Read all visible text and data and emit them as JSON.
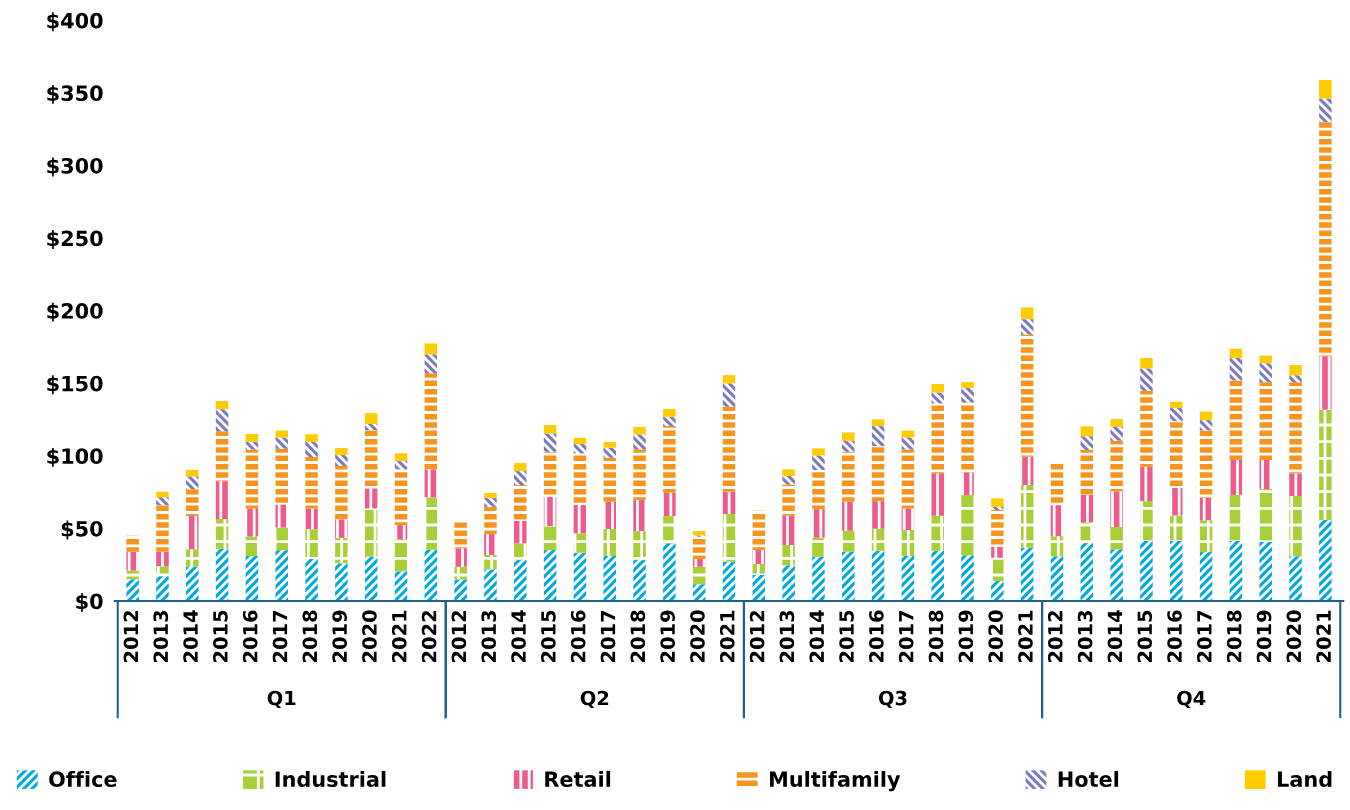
{
  "chart_data": {
    "type": "bar",
    "stacked": true,
    "categories": [
      "2012",
      "2013",
      "2014",
      "2015",
      "2016",
      "2017",
      "2018",
      "2019",
      "2020",
      "2021",
      "2022",
      "2012",
      "2013",
      "2014",
      "2015",
      "2016",
      "2017",
      "2018",
      "2019",
      "2020",
      "2021",
      "2012",
      "2013",
      "2014",
      "2015",
      "2016",
      "2017",
      "2018",
      "2019",
      "2020",
      "2021",
      "2012",
      "2013",
      "2014",
      "2015",
      "2016",
      "2017",
      "2018",
      "2019",
      "2020",
      "2021"
    ],
    "annotations": [
      "Q1",
      "Q2",
      "Q3",
      "Q4"
    ],
    "series": [
      {
        "name": "Office",
        "color": "#00a9e0",
        "values": [
          15,
          17,
          23.6,
          36,
          31,
          35,
          29,
          26,
          30.5,
          20.4,
          35.3,
          14.9,
          21.8,
          28.2,
          35.1,
          33.3,
          31,
          28.2,
          39.7,
          11.5,
          27.1,
          17.9,
          24.6,
          30.5,
          33.9,
          34.6,
          31,
          34.6,
          31.5,
          13.8,
          36.7,
          30.8,
          39.9,
          35.6,
          41.5,
          41.5,
          33.7,
          41.5,
          40.8,
          30.8,
          55.8
        ]
      },
      {
        "name": "Industrial",
        "color": "#a8cf38",
        "values": [
          6,
          7,
          12,
          20.5,
          13.5,
          15.6,
          20.5,
          17.5,
          33.3,
          22.1,
          36.1,
          8.7,
          9.9,
          11.5,
          16.5,
          13.3,
          18.6,
          20,
          18.8,
          12.1,
          32.8,
          7.6,
          14,
          13.1,
          14.5,
          15.2,
          17.9,
          24.1,
          41.5,
          16,
          43.2,
          13.8,
          14.2,
          15.4,
          27.3,
          17.4,
          21.9,
          31.6,
          36.3,
          41.6,
          75.9
        ]
      },
      {
        "name": "Retail",
        "color": "#ee5a8a",
        "values": [
          13,
          10,
          23,
          26,
          19.3,
          15.9,
          14.2,
          12.8,
          13.8,
          9.8,
          19.3,
          12.7,
          14.4,
          15.6,
          20.2,
          19.5,
          18.8,
          21.3,
          16.3,
          5.3,
          15.4,
          9.6,
          20.1,
          19.7,
          20,
          19,
          14.9,
          29.2,
          15.6,
          7.6,
          19.4,
          21.4,
          19,
          24.5,
          23.7,
          19,
          15.6,
          24.1,
          20.1,
          15.4,
          36.8
        ]
      },
      {
        "name": "Multifamily",
        "color": "#f7941d",
        "values": [
          11,
          32,
          18.4,
          34.5,
          40.4,
          38.4,
          35.5,
          36.7,
          40.1,
          38.4,
          66.1,
          17.9,
          18.8,
          24.6,
          31,
          35.6,
          30.3,
          34.9,
          45.7,
          15.4,
          58.5,
          27.1,
          21.6,
          26.9,
          34.4,
          37.9,
          40.6,
          48.2,
          48.2,
          25.3,
          84.3,
          28.5,
          30.9,
          34.9,
          52.3,
          46,
          46.3,
          54.7,
          53.5,
          62.9,
          161.5
        ]
      },
      {
        "name": "Hotel",
        "color": "#7b7bbf",
        "values": [
          0,
          5.5,
          8.7,
          15,
          5.5,
          7.7,
          10.4,
          7.6,
          4.2,
          5.7,
          13.1,
          0,
          6.2,
          9.6,
          12.6,
          6.4,
          6.9,
          10.4,
          6.4,
          0.9,
          16.1,
          0,
          5.8,
          10.1,
          7.5,
          13.8,
          8.3,
          7.5,
          10,
          2.2,
          10.5,
          0,
          9.5,
          9.5,
          15.4,
          9,
          7.1,
          15.5,
          13.1,
          4.8,
          16.1
        ]
      },
      {
        "name": "Land",
        "color": "#ffcc00",
        "values": [
          0,
          3.7,
          4.6,
          5.7,
          5.3,
          4.8,
          5.3,
          4.8,
          7.5,
          5.3,
          7.5,
          0,
          3.3,
          5.5,
          5.8,
          4.3,
          3.9,
          5,
          5.3,
          3,
          5.7,
          0,
          4.6,
          4.8,
          5.8,
          4.6,
          4.6,
          5.8,
          4,
          5.8,
          8.1,
          0,
          6.8,
          5.4,
          7.2,
          4.3,
          5.9,
          6.4,
          5.2,
          7.1,
          12.8
        ]
      }
    ],
    "ylim": [
      0,
      400
    ],
    "yticks": [
      {
        "value": 0,
        "label": "$0"
      },
      {
        "value": 50,
        "label": "$50"
      },
      {
        "value": 100,
        "label": "$100"
      },
      {
        "value": 150,
        "label": "$150"
      },
      {
        "value": 200,
        "label": "$200"
      },
      {
        "value": 250,
        "label": "$250"
      },
      {
        "value": 300,
        "label": "$300"
      },
      {
        "value": 350,
        "label": "$350"
      },
      {
        "value": 400,
        "label": "$400"
      }
    ],
    "legend": "bottom",
    "grid": false
  }
}
